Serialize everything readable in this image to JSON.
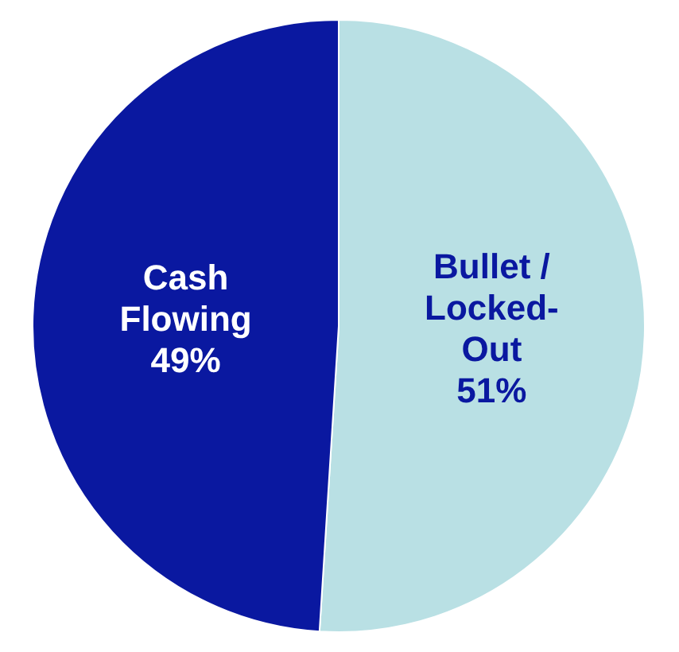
{
  "chart_data": {
    "type": "pie",
    "categories": [
      "Bullet / Locked-Out",
      "Cash Flowing"
    ],
    "values": [
      51,
      49
    ],
    "value_labels": [
      "51%",
      "49%"
    ],
    "colors": [
      "#b9e0e4",
      "#0a18a0"
    ],
    "legend": false
  }
}
